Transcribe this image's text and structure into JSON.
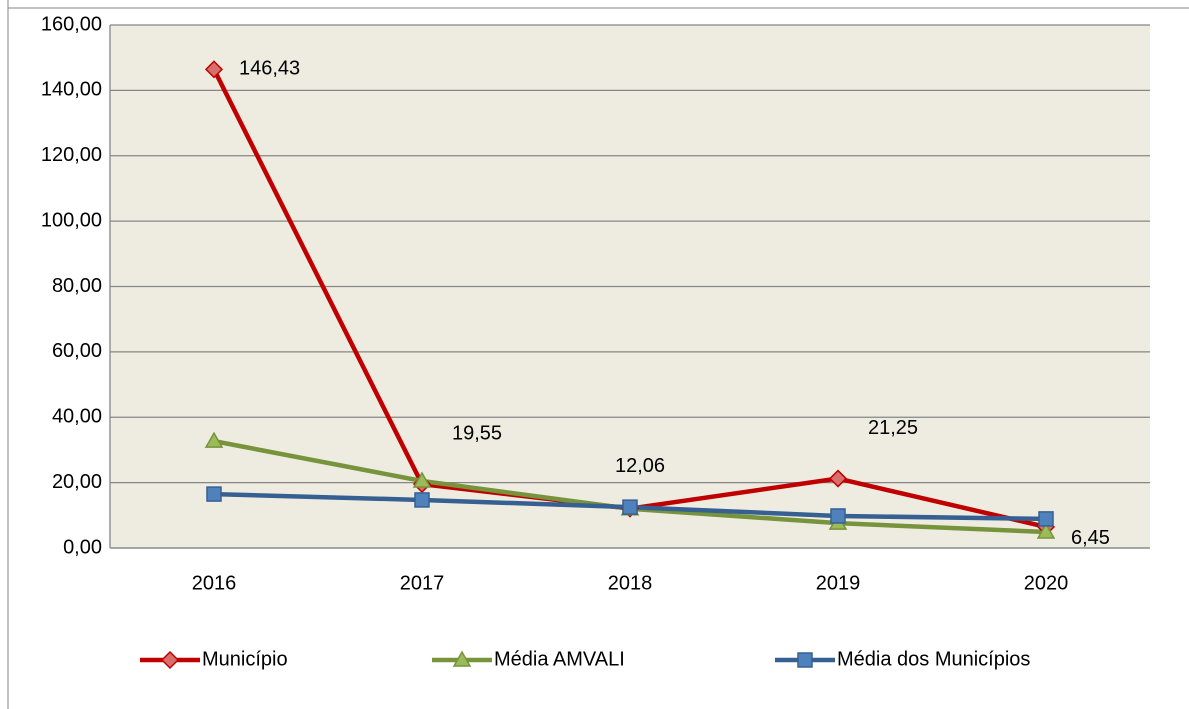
{
  "chart_data": {
    "type": "line",
    "categories": [
      "2016",
      "2017",
      "2018",
      "2019",
      "2020"
    ],
    "series": [
      {
        "name": "Município",
        "color": "#c00000",
        "marker": "diamond",
        "values": [
          146.43,
          19.55,
          12.06,
          21.25,
          6.45
        ],
        "value_labels": [
          "146,43",
          "19,55",
          "12,06",
          "21,25",
          "6,45"
        ]
      },
      {
        "name": "Média AMVALI",
        "color": "#77933c",
        "marker": "triangle",
        "values": [
          32.7,
          20.5,
          12,
          7.6,
          4.9
        ]
      },
      {
        "name": "Média dos Municípios",
        "color": "#376092",
        "marker": "square",
        "values": [
          16.5,
          14.7,
          12.5,
          9.8,
          8.9
        ]
      }
    ],
    "ylim": [
      0,
      160
    ],
    "yticks": [
      {
        "value": 0,
        "label": "0,00"
      },
      {
        "value": 20,
        "label": "20,00"
      },
      {
        "value": 40,
        "label": "40,00"
      },
      {
        "value": 60,
        "label": "60,00"
      },
      {
        "value": 80,
        "label": "80,00"
      },
      {
        "value": 100,
        "label": "100,00"
      },
      {
        "value": 120,
        "label": "120,00"
      },
      {
        "value": 140,
        "label": "140,00"
      },
      {
        "value": 160,
        "label": "160,00"
      }
    ],
    "grid": true,
    "legend": "bottom"
  }
}
